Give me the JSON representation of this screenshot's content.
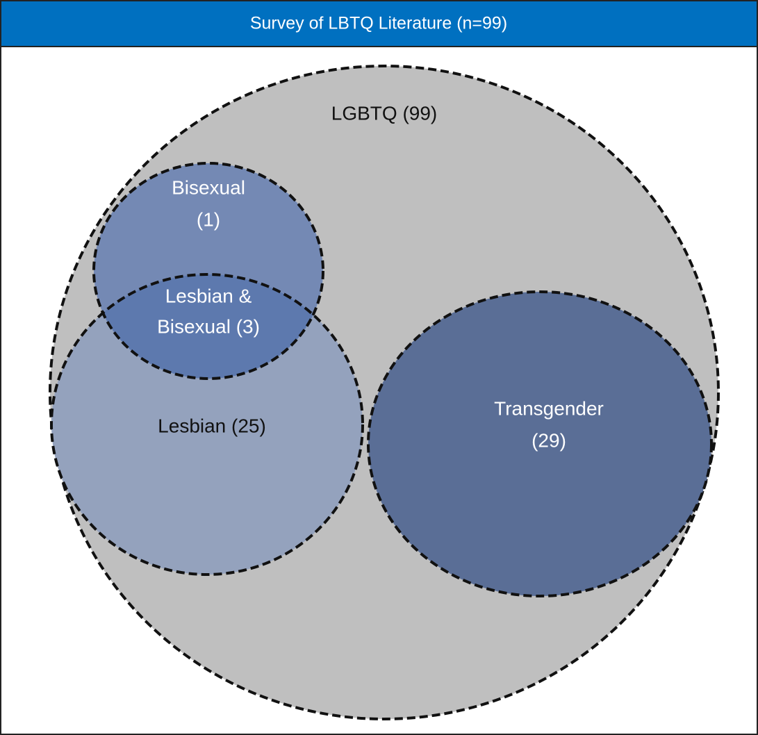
{
  "header": {
    "title": "Survey of LBTQ Literature (n=99)"
  },
  "labels": [
    {
      "lines": [
        "LGBTQ (99)"
      ]
    },
    {
      "lines": [
        "Bisexual",
        "(1)"
      ]
    },
    {
      "lines": [
        "Lesbian &",
        "Bisexual (3)"
      ]
    },
    {
      "lines": [
        "Lesbian (25)"
      ]
    },
    {
      "lines": [
        "Transgender",
        "(29)"
      ]
    }
  ]
}
